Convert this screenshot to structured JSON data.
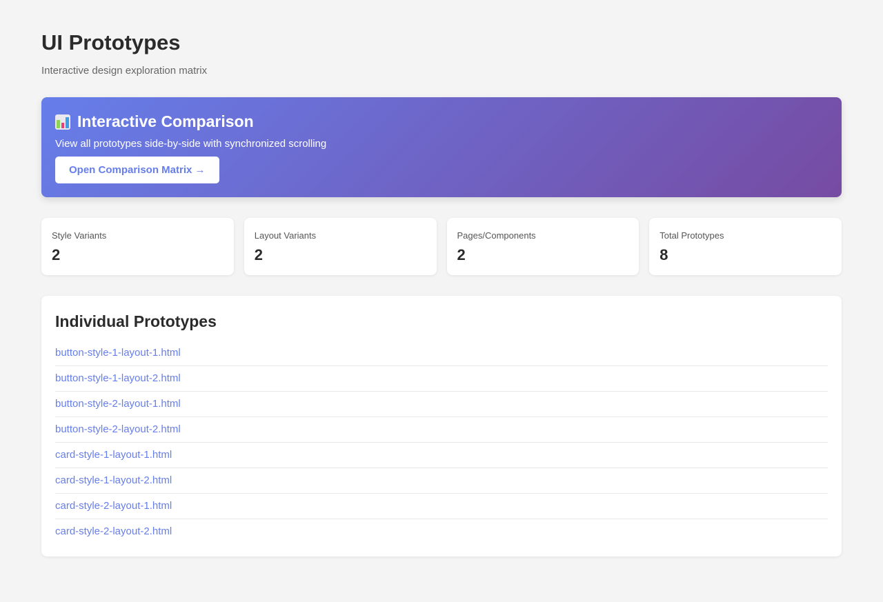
{
  "header": {
    "title": "UI Prototypes",
    "subtitle": "Interactive design exploration matrix"
  },
  "banner": {
    "icon": "bar-chart-icon",
    "title": "Interactive Comparison",
    "description": "View all prototypes side-by-side with synchronized scrolling",
    "button_label": "Open Comparison Matrix →",
    "gradient": [
      "#667eea",
      "#764ba2"
    ]
  },
  "stats": [
    {
      "label": "Style Variants",
      "value": "2"
    },
    {
      "label": "Layout Variants",
      "value": "2"
    },
    {
      "label": "Pages/Components",
      "value": "2"
    },
    {
      "label": "Total Prototypes",
      "value": "8"
    }
  ],
  "prototypes": {
    "title": "Individual Prototypes",
    "items": [
      "button-style-1-layout-1.html",
      "button-style-1-layout-2.html",
      "button-style-2-layout-1.html",
      "button-style-2-layout-2.html",
      "card-style-1-layout-1.html",
      "card-style-1-layout-2.html",
      "card-style-2-layout-1.html",
      "card-style-2-layout-2.html"
    ]
  }
}
